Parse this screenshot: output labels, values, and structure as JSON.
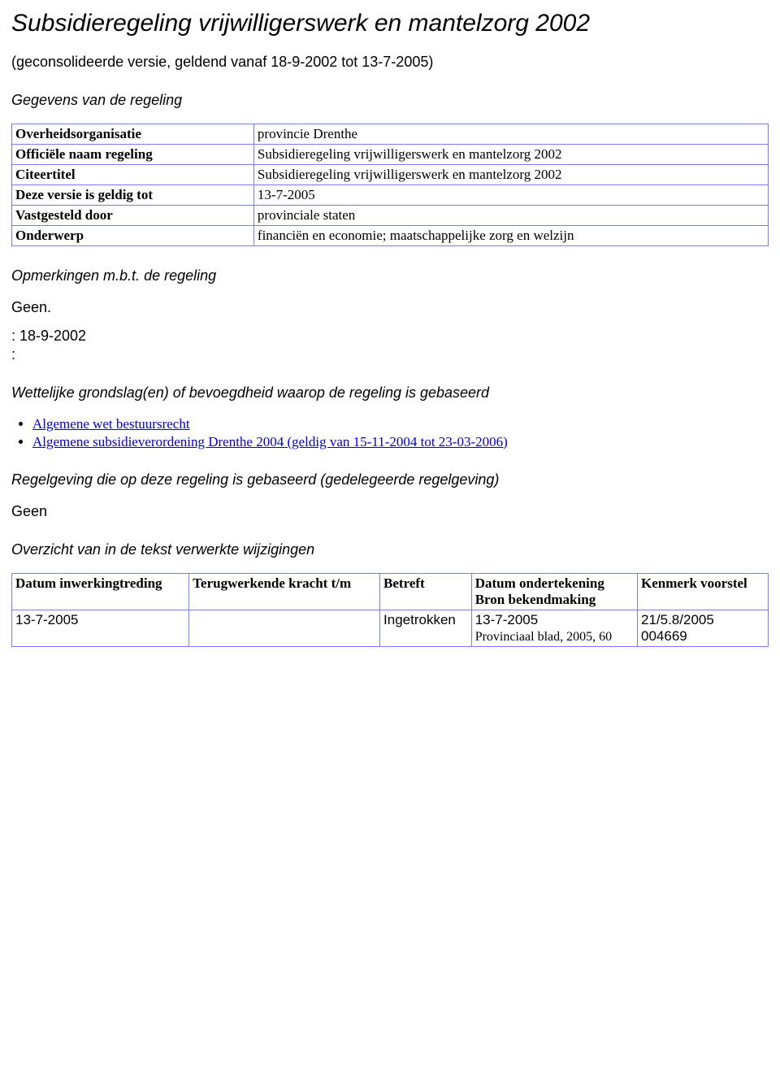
{
  "title": "Subsidieregeling vrijwilligerswerk en mantelzorg 2002",
  "subtitle": "(geconsolideerde versie, geldend vanaf 18-9-2002 tot 13-7-2005)",
  "sections": {
    "gegevens_heading": "Gegevens van de regeling",
    "opmerkingen_heading": "Opmerkingen m.b.t. de regeling",
    "grondslag_heading": "Wettelijke grondslag(en) of bevoegdheid waarop de regeling is gebaseerd",
    "gedelegeerd_heading": "Regelgeving die op deze regeling is gebaseerd (gedelegeerde regelgeving)",
    "wijzigingen_heading": "Overzicht van in de tekst verwerkte wijzigingen"
  },
  "info_table": {
    "rows": [
      {
        "label": "Overheidsorganisatie",
        "value": "provincie Drenthe"
      },
      {
        "label": "Officiële naam regeling",
        "value": "Subsidieregeling vrijwilligerswerk en mantelzorg 2002"
      },
      {
        "label": "Citeertitel",
        "value": "Subsidieregeling vrijwilligerswerk en mantelzorg 2002"
      },
      {
        "label": "Deze versie is geldig tot",
        "value": "13-7-2005"
      },
      {
        "label": "Vastgesteld door",
        "value": "provinciale staten"
      },
      {
        "label": "Onderwerp",
        "value": "financiën en economie; maatschappelijke zorg en welzijn"
      }
    ]
  },
  "opmerkingen_body": {
    "geen": "Geen.",
    "line1": ": 18-9-2002",
    "line2": ":"
  },
  "grondslag_links": [
    {
      "text": "Algemene wet bestuursrecht"
    },
    {
      "text": "Algemene subsidieverordening Drenthe 2004 (geldig van 15-11-2004 tot 23-03-2006)"
    }
  ],
  "gedelegeerd_body": "Geen",
  "changes_table": {
    "headers": {
      "c1": "Datum inwerkingtreding",
      "c2": "Terugwerkende kracht t/m",
      "c3": "Betreft",
      "c4a": "Datum ondertekening",
      "c4b": "Bron bekendmaking",
      "c5": "Kenmerk voorstel"
    },
    "row": {
      "c1": "13-7-2005",
      "c2": "",
      "c3": "Ingetrokken",
      "c4_top": "13-7-2005",
      "c4_bottom": "Provinciaal blad, 2005, 60",
      "c5a": "21/5.8/2005",
      "c5b": "004669"
    }
  }
}
